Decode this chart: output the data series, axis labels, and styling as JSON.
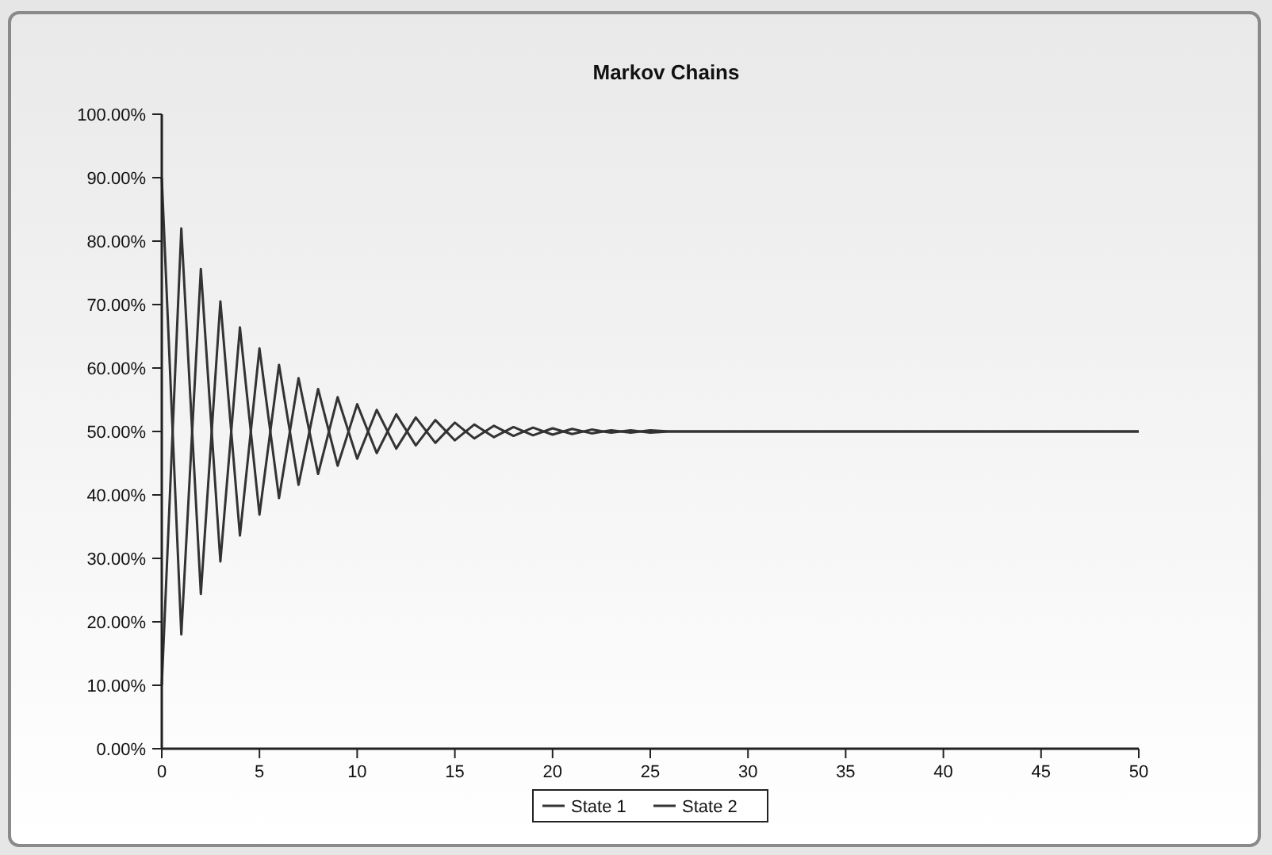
{
  "chart_data": {
    "type": "line",
    "title": "Markov Chains",
    "x": [
      0,
      1,
      2,
      3,
      4,
      5,
      6,
      7,
      8,
      9,
      10,
      11,
      12,
      13,
      14,
      15,
      16,
      17,
      18,
      19,
      20,
      21,
      22,
      23,
      24,
      25,
      26,
      27,
      28,
      29,
      30,
      31,
      32,
      33,
      34,
      35,
      36,
      37,
      38,
      39,
      40,
      41,
      42,
      43,
      44,
      45,
      46,
      47,
      48,
      49,
      50
    ],
    "series": [
      {
        "name": "State 1",
        "color": "#333333",
        "values": [
          90,
          18,
          75.6,
          29.5,
          66.4,
          36.9,
          60.5,
          41.6,
          56.7,
          44.6,
          54.3,
          46.6,
          52.7,
          47.8,
          51.8,
          48.6,
          51.1,
          49.1,
          50.7,
          49.4,
          50.5,
          49.6,
          50.3,
          49.8,
          50.2,
          49.8,
          50,
          50,
          50,
          50,
          50,
          50,
          50,
          50,
          50,
          50,
          50,
          50,
          50,
          50,
          50,
          50,
          50,
          50,
          50,
          50,
          50,
          50,
          50,
          50,
          50
        ]
      },
      {
        "name": "State 2",
        "color": "#333333",
        "values": [
          10,
          82,
          24.4,
          70.5,
          33.6,
          63.1,
          39.5,
          58.4,
          43.3,
          55.4,
          45.7,
          53.4,
          47.3,
          52.2,
          48.2,
          51.4,
          48.9,
          50.9,
          49.3,
          50.6,
          49.5,
          50.4,
          49.7,
          50.2,
          49.8,
          50.2,
          50,
          50,
          50,
          50,
          50,
          50,
          50,
          50,
          50,
          50,
          50,
          50,
          50,
          50,
          50,
          50,
          50,
          50,
          50,
          50,
          50,
          50,
          50,
          50,
          50
        ]
      }
    ],
    "xlim": [
      0,
      50
    ],
    "xticks": [
      0,
      5,
      10,
      15,
      20,
      25,
      30,
      35,
      40,
      45,
      50
    ],
    "ylim": [
      0,
      100
    ],
    "yticks": [
      {
        "value": 0,
        "label": "0.00%"
      },
      {
        "value": 10,
        "label": "10.00%"
      },
      {
        "value": 20,
        "label": "20.00%"
      },
      {
        "value": 30,
        "label": "30.00%"
      },
      {
        "value": 40,
        "label": "40.00%"
      },
      {
        "value": 50,
        "label": "50.00%"
      },
      {
        "value": 60,
        "label": "60.00%"
      },
      {
        "value": 70,
        "label": "70.00%"
      },
      {
        "value": 80,
        "label": "80.00%"
      },
      {
        "value": 90,
        "label": "90.00%"
      },
      {
        "value": 100,
        "label": "100.00%"
      }
    ],
    "legend": "bottom",
    "grid": false,
    "marker": "none",
    "line_style": "solid"
  }
}
